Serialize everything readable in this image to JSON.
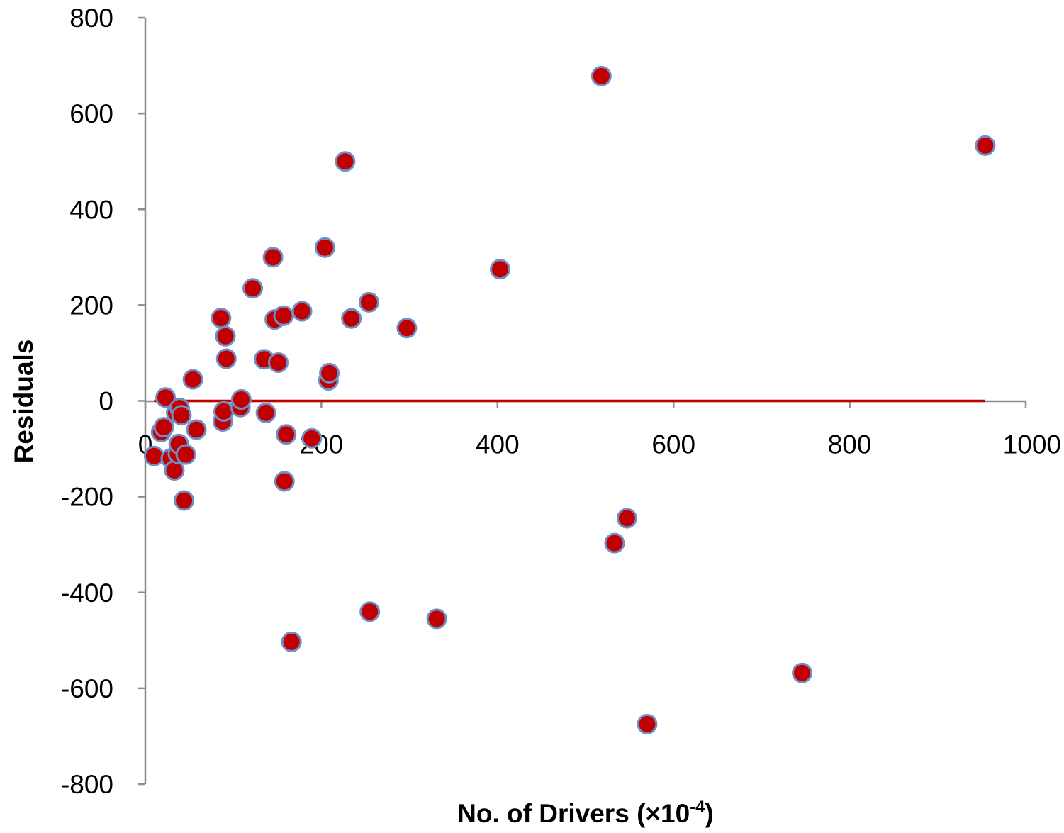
{
  "chart_data": {
    "type": "scatter",
    "xlabel": "No. of Drivers (×10",
    "xlabel_superscript": "-4",
    "xlabel_suffix": ")",
    "ylabel": "Residuals",
    "xlim": [
      0,
      1000
    ],
    "ylim": [
      -800,
      800
    ],
    "x_ticks": [
      "0",
      "200",
      "400",
      "600",
      "800",
      "1000"
    ],
    "y_ticks": [
      "800",
      "600",
      "400",
      "200",
      "0",
      "-200",
      "-400",
      "-600",
      "-800"
    ],
    "x_tick_values": [
      0,
      200,
      400,
      600,
      800,
      1000
    ],
    "y_tick_values": [
      800,
      600,
      400,
      200,
      0,
      -200,
      -400,
      -600,
      -800
    ],
    "grid": false,
    "legend": "none",
    "reference_line": {
      "y": 0,
      "x_range": [
        10,
        954
      ],
      "color": "#C00000"
    },
    "marker_fill": "#C00000",
    "marker_edge": "#6F8FC8",
    "series": [
      {
        "points": [
          {
            "x": 10,
            "y": -115
          },
          {
            "x": 18,
            "y": -65
          },
          {
            "x": 21,
            "y": -55
          },
          {
            "x": 23,
            "y": 7
          },
          {
            "x": 29,
            "y": -120
          },
          {
            "x": 33,
            "y": -145
          },
          {
            "x": 35,
            "y": -25
          },
          {
            "x": 37,
            "y": -110
          },
          {
            "x": 38,
            "y": -90
          },
          {
            "x": 39,
            "y": -15
          },
          {
            "x": 41,
            "y": -30
          },
          {
            "x": 44,
            "y": -208
          },
          {
            "x": 46,
            "y": -112
          },
          {
            "x": 54,
            "y": 45
          },
          {
            "x": 58,
            "y": -60
          },
          {
            "x": 86,
            "y": 173
          },
          {
            "x": 88,
            "y": -43
          },
          {
            "x": 89,
            "y": -22
          },
          {
            "x": 91,
            "y": 135
          },
          {
            "x": 92,
            "y": 88
          },
          {
            "x": 108,
            "y": -13
          },
          {
            "x": 109,
            "y": 3
          },
          {
            "x": 122,
            "y": 235
          },
          {
            "x": 135,
            "y": 87
          },
          {
            "x": 137,
            "y": -25
          },
          {
            "x": 145,
            "y": 300
          },
          {
            "x": 147,
            "y": 170
          },
          {
            "x": 151,
            "y": 80
          },
          {
            "x": 157,
            "y": 178
          },
          {
            "x": 158,
            "y": -168
          },
          {
            "x": 160,
            "y": -70
          },
          {
            "x": 166,
            "y": -503
          },
          {
            "x": 178,
            "y": 187
          },
          {
            "x": 189,
            "y": -78
          },
          {
            "x": 204,
            "y": 320
          },
          {
            "x": 208,
            "y": 43
          },
          {
            "x": 209,
            "y": 58
          },
          {
            "x": 227,
            "y": 500
          },
          {
            "x": 234,
            "y": 172
          },
          {
            "x": 254,
            "y": 206
          },
          {
            "x": 255,
            "y": -440
          },
          {
            "x": 297,
            "y": 152
          },
          {
            "x": 331,
            "y": -455
          },
          {
            "x": 403,
            "y": 275
          },
          {
            "x": 518,
            "y": 678
          },
          {
            "x": 533,
            "y": -297
          },
          {
            "x": 547,
            "y": -245
          },
          {
            "x": 570,
            "y": -675
          },
          {
            "x": 746,
            "y": -568
          },
          {
            "x": 954,
            "y": 533
          }
        ]
      }
    ]
  }
}
